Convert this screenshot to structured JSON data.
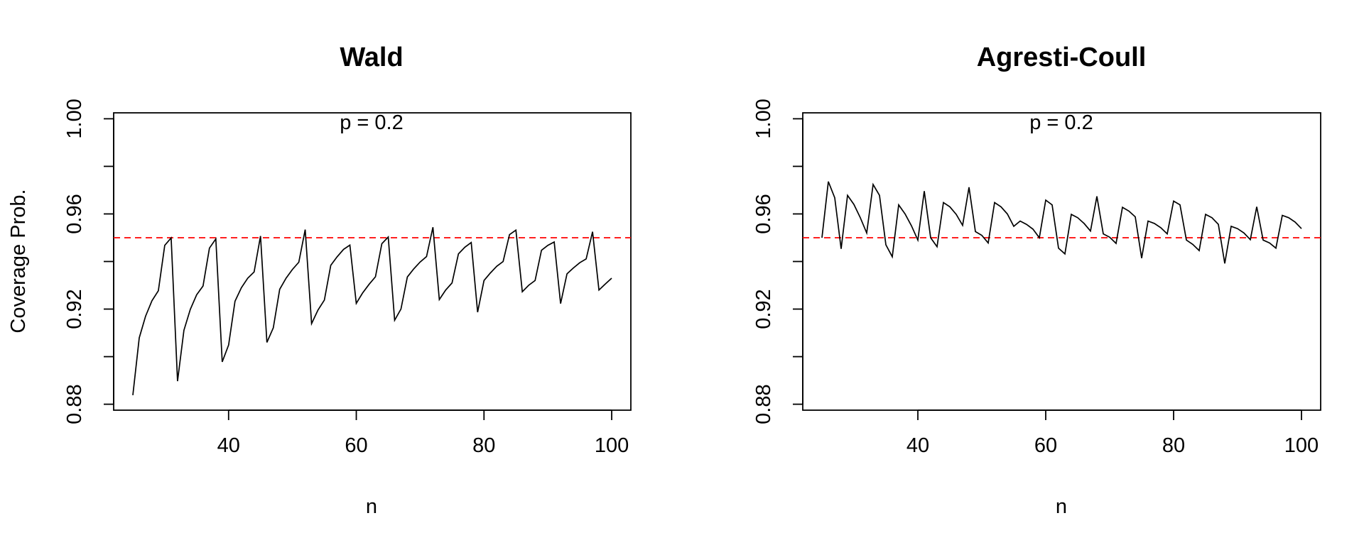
{
  "chart_data": [
    {
      "type": "line",
      "title": "Wald",
      "annotation": "p = 0.2",
      "xlabel": "n",
      "ylabel": "Coverage Prob.",
      "xlim": [
        22,
        103
      ],
      "ylim": [
        0.8775,
        1.0025
      ],
      "xticks": [
        40,
        60,
        80,
        100
      ],
      "xtick_labels": [
        "40",
        "60",
        "80",
        "100"
      ],
      "yticks": [
        0.88,
        0.9,
        0.92,
        0.94,
        0.96,
        0.98,
        1.0
      ],
      "ytick_labels": [
        "0.88",
        "",
        "0.92",
        "",
        "0.96",
        "",
        "1.00"
      ],
      "reference_line": {
        "y": 0.95,
        "color": "#ff0000",
        "style": "dashed"
      },
      "grid": false,
      "series": [
        {
          "x": [
            25,
            26,
            27,
            28,
            29,
            30,
            31,
            32,
            33,
            34,
            35,
            36,
            37,
            38,
            39,
            40,
            41,
            42,
            43,
            44,
            45,
            46,
            47,
            48,
            49,
            50,
            51,
            52,
            53,
            54,
            55,
            56,
            57,
            58,
            59,
            60,
            61,
            62,
            63,
            64,
            65,
            66,
            67,
            68,
            69,
            70,
            71,
            72,
            73,
            74,
            75,
            76,
            77,
            78,
            79,
            80,
            81,
            82,
            83,
            84,
            85,
            86,
            87,
            88,
            89,
            90,
            91,
            92,
            93,
            94,
            95,
            96,
            97,
            98,
            99,
            100
          ],
          "y": [
            0.8838,
            0.9079,
            0.917,
            0.9235,
            0.9277,
            0.9468,
            0.9499,
            0.8897,
            0.9111,
            0.9199,
            0.926,
            0.9297,
            0.9456,
            0.9495,
            0.8978,
            0.9049,
            0.9233,
            0.929,
            0.933,
            0.9356,
            0.9507,
            0.906,
            0.9121,
            0.9283,
            0.933,
            0.9367,
            0.9397,
            0.9534,
            0.9139,
            0.9196,
            0.9238,
            0.9384,
            0.942,
            0.9451,
            0.9469,
            0.9224,
            0.9268,
            0.9304,
            0.9336,
            0.9475,
            0.9503,
            0.9153,
            0.92,
            0.9335,
            0.9369,
            0.9398,
            0.9421,
            0.9544,
            0.924,
            0.928,
            0.931,
            0.9432,
            0.946,
            0.948,
            0.9187,
            0.932,
            0.9352,
            0.938,
            0.94,
            0.9513,
            0.9532,
            0.9273,
            0.93,
            0.932,
            0.9447,
            0.9468,
            0.9482,
            0.9223,
            0.9348,
            0.9373,
            0.9395,
            0.9411,
            0.9525,
            0.928,
            0.9305,
            0.933
          ]
        }
      ]
    },
    {
      "type": "line",
      "title": "Agresti-Coull",
      "annotation": "p = 0.2",
      "xlabel": "n",
      "ylabel": "",
      "xlim": [
        22,
        103
      ],
      "ylim": [
        0.8775,
        1.0025
      ],
      "xticks": [
        40,
        60,
        80,
        100
      ],
      "xtick_labels": [
        "40",
        "60",
        "80",
        "100"
      ],
      "yticks": [
        0.88,
        0.9,
        0.92,
        0.94,
        0.96,
        0.98,
        1.0
      ],
      "ytick_labels": [
        "0.88",
        "",
        "0.92",
        "",
        "0.96",
        "",
        "1.00"
      ],
      "reference_line": {
        "y": 0.95,
        "color": "#ff0000",
        "style": "dashed"
      },
      "grid": false,
      "series": [
        {
          "x": [
            25,
            26,
            27,
            28,
            29,
            30,
            31,
            32,
            33,
            34,
            35,
            36,
            37,
            38,
            39,
            40,
            41,
            42,
            43,
            44,
            45,
            46,
            47,
            48,
            49,
            50,
            51,
            52,
            53,
            54,
            55,
            56,
            57,
            58,
            59,
            60,
            61,
            62,
            63,
            64,
            65,
            66,
            67,
            68,
            69,
            70,
            71,
            72,
            73,
            74,
            75,
            76,
            77,
            78,
            79,
            80,
            81,
            82,
            83,
            84,
            85,
            86,
            87,
            88,
            89,
            90,
            91,
            92,
            93,
            94,
            95,
            96,
            97,
            98,
            99,
            100
          ],
          "y": [
            0.95,
            0.9736,
            0.9668,
            0.9453,
            0.9678,
            0.964,
            0.9584,
            0.952,
            0.9724,
            0.9678,
            0.947,
            0.942,
            0.9638,
            0.96,
            0.955,
            0.949,
            0.9696,
            0.95,
            0.9462,
            0.9648,
            0.963,
            0.9598,
            0.9552,
            0.9712,
            0.9526,
            0.951,
            0.9478,
            0.9648,
            0.963,
            0.96,
            0.9548,
            0.957,
            0.9556,
            0.9536,
            0.95,
            0.9658,
            0.9638,
            0.9456,
            0.9432,
            0.9598,
            0.9584,
            0.956,
            0.9528,
            0.9674,
            0.9516,
            0.9502,
            0.9476,
            0.9628,
            0.9612,
            0.9588,
            0.9414,
            0.957,
            0.956,
            0.9542,
            0.9516,
            0.9654,
            0.9638,
            0.949,
            0.9472,
            0.9446,
            0.9598,
            0.9584,
            0.9556,
            0.9392,
            0.9548,
            0.9538,
            0.952,
            0.9492,
            0.963,
            0.949,
            0.9478,
            0.9456,
            0.9594,
            0.9584,
            0.9566,
            0.9538
          ]
        }
      ]
    }
  ]
}
